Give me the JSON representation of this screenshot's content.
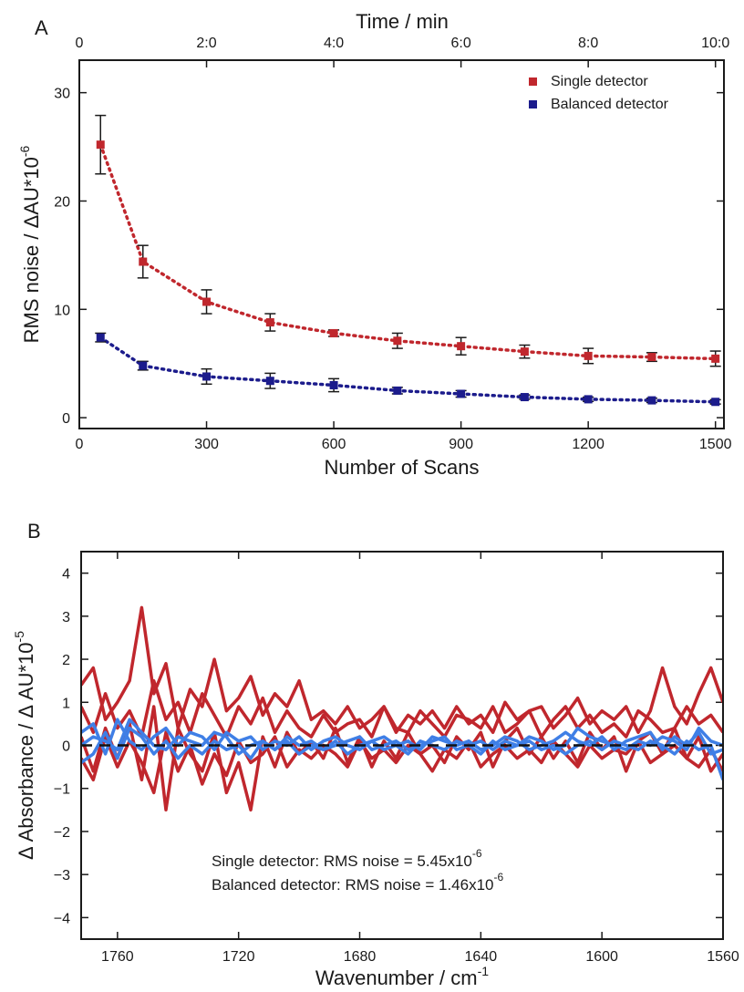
{
  "chart_data": [
    {
      "panel": "A",
      "type": "scatter",
      "xlabel": "Number of Scans",
      "ylabel": "RMS noise / ΔAU*10",
      "ylabel_exp": "-6",
      "x2label": "Time / min",
      "xlim": [
        0,
        1520
      ],
      "ylim": [
        -1,
        33
      ],
      "xticks": [
        0,
        300,
        600,
        900,
        1200,
        1500
      ],
      "yticks": [
        0,
        10,
        20,
        30
      ],
      "x2ticks": [
        "0",
        "2:0",
        "4:0",
        "6:0",
        "8:0",
        "10:0"
      ],
      "x2tick_values": [
        0,
        300,
        600,
        900,
        1200,
        1500
      ],
      "legend": "top-right",
      "series": [
        {
          "name": "Single detector",
          "color": "#c0272d",
          "x": [
            50,
            150,
            300,
            450,
            600,
            750,
            900,
            1050,
            1200,
            1350,
            1500
          ],
          "y": [
            25.2,
            14.4,
            10.7,
            8.8,
            7.8,
            7.1,
            6.6,
            6.1,
            5.7,
            5.6,
            5.45
          ],
          "err": [
            2.7,
            1.5,
            1.1,
            0.8,
            0.3,
            0.7,
            0.8,
            0.6,
            0.7,
            0.4,
            0.7
          ]
        },
        {
          "name": "Balanced detector",
          "color": "#1c1c8c",
          "x": [
            50,
            150,
            300,
            450,
            600,
            750,
            900,
            1050,
            1200,
            1350,
            1500
          ],
          "y": [
            7.4,
            4.8,
            3.8,
            3.4,
            3.0,
            2.5,
            2.2,
            1.9,
            1.7,
            1.6,
            1.46
          ],
          "err": [
            0.4,
            0.4,
            0.7,
            0.7,
            0.6,
            0.3,
            0.3,
            0.2,
            0.2,
            0.2,
            0.2
          ]
        }
      ]
    },
    {
      "panel": "B",
      "type": "line",
      "xlabel": "Wavenumber / cm",
      "xlabel_exp": "-1",
      "ylabel": "Δ Absorbance / Δ AU*10",
      "ylabel_exp": "-5",
      "xlim": [
        1772,
        1560
      ],
      "ylim": [
        -4.5,
        4.5
      ],
      "xticks": [
        1760,
        1720,
        1680,
        1640,
        1600,
        1560
      ],
      "yticks": [
        -4,
        -3,
        -2,
        -1,
        0,
        1,
        2,
        3,
        4
      ],
      "zero_line": true,
      "annotations": [
        {
          "text": "Single detector: RMS noise = 5.45x10",
          "exp": "-6",
          "color": "#c0272d"
        },
        {
          "text": "Balanced detector: RMS noise = 1.46x10",
          "exp": "-6",
          "color": "#3f7fe6"
        }
      ],
      "series": [
        {
          "group": "single",
          "color": "#c0272d",
          "x": [
            1772,
            1768,
            1764,
            1760,
            1756,
            1752,
            1748,
            1744,
            1740,
            1736,
            1732,
            1728,
            1724,
            1720,
            1716,
            1712,
            1708,
            1704,
            1700,
            1696,
            1692,
            1688,
            1684,
            1680,
            1676,
            1672,
            1668,
            1664,
            1660,
            1656,
            1652,
            1648,
            1644,
            1640,
            1636,
            1632,
            1628,
            1624,
            1620,
            1616,
            1612,
            1608,
            1604,
            1600,
            1596,
            1592,
            1588,
            1584,
            1580,
            1576,
            1572,
            1568,
            1564,
            1560
          ],
          "y": [
            1.4,
            1.8,
            0.6,
            1.0,
            1.5,
            3.2,
            1.2,
            1.9,
            0.4,
            1.3,
            0.9,
            2.0,
            0.8,
            1.1,
            1.6,
            0.7,
            1.2,
            0.9,
            1.5,
            0.6,
            0.8,
            0.5,
            0.9,
            0.4,
            0.6,
            0.9,
            0.3,
            0.7,
            0.5,
            0.8,
            0.4,
            0.9,
            0.5,
            0.7,
            0.3,
            1.0,
            0.6,
            0.8,
            0.9,
            0.4,
            0.7,
            1.1,
            0.5,
            0.8,
            0.6,
            0.9,
            0.3,
            0.8,
            1.8,
            0.9,
            0.5,
            1.2,
            1.8,
            1.0
          ]
        },
        {
          "group": "single",
          "color": "#c0272d",
          "x": [
            1772,
            1768,
            1764,
            1760,
            1756,
            1752,
            1748,
            1744,
            1740,
            1736,
            1732,
            1728,
            1724,
            1720,
            1716,
            1712,
            1708,
            1704,
            1700,
            1696,
            1692,
            1688,
            1684,
            1680,
            1676,
            1672,
            1668,
            1664,
            1660,
            1656,
            1652,
            1648,
            1644,
            1640,
            1636,
            1632,
            1628,
            1624,
            1620,
            1616,
            1612,
            1608,
            1604,
            1600,
            1596,
            1592,
            1588,
            1584,
            1580,
            1576,
            1572,
            1568,
            1564,
            1560
          ],
          "y": [
            0.2,
            -0.6,
            0.4,
            -0.3,
            0.5,
            -0.8,
            0.9,
            -1.5,
            0.4,
            -0.2,
            -0.6,
            0.3,
            -1.1,
            -0.4,
            -1.5,
            0.2,
            -0.5,
            0.3,
            -0.2,
            0.1,
            -0.3,
            0.4,
            -0.4,
            0.2,
            -0.5,
            0.1,
            -0.3,
            0.3,
            -0.2,
            0.0,
            -0.4,
            0.2,
            -0.1,
            0.3,
            -0.5,
            0.1,
            0.4,
            -0.2,
            0.2,
            -0.3,
            0.1,
            -0.4,
            0.3,
            -0.1,
            0.2,
            -0.6,
            0.1,
            0.3,
            -0.2,
            0.4,
            -0.3,
            0.2,
            -0.6,
            -0.2
          ]
        },
        {
          "group": "single",
          "color": "#c0272d",
          "x": [
            1772,
            1768,
            1764,
            1760,
            1756,
            1752,
            1748,
            1744,
            1740,
            1736,
            1732,
            1728,
            1724,
            1720,
            1716,
            1712,
            1708,
            1704,
            1700,
            1696,
            1692,
            1688,
            1684,
            1680,
            1676,
            1672,
            1668,
            1664,
            1660,
            1656,
            1652,
            1648,
            1644,
            1640,
            1636,
            1632,
            1628,
            1624,
            1620,
            1616,
            1612,
            1608,
            1604,
            1600,
            1596,
            1592,
            1588,
            1584,
            1580,
            1576,
            1572,
            1568,
            1564,
            1560
          ],
          "y": [
            0.9,
            0.3,
            1.2,
            0.4,
            0.8,
            0.2,
            1.5,
            0.6,
            1.0,
            0.3,
            1.2,
            0.7,
            0.2,
            0.9,
            0.5,
            1.1,
            0.3,
            0.8,
            0.4,
            0.2,
            0.7,
            0.3,
            0.5,
            0.6,
            0.2,
            0.9,
            0.4,
            0.3,
            0.8,
            0.5,
            0.2,
            0.7,
            0.6,
            0.4,
            0.9,
            0.3,
            0.5,
            0.8,
            0.2,
            0.6,
            0.9,
            0.4,
            0.7,
            0.3,
            0.5,
            0.2,
            0.8,
            0.6,
            0.3,
            0.4,
            0.9,
            0.5,
            0.7,
            0.3
          ]
        },
        {
          "group": "single",
          "color": "#c0272d",
          "x": [
            1772,
            1768,
            1764,
            1760,
            1756,
            1752,
            1748,
            1744,
            1740,
            1736,
            1732,
            1728,
            1724,
            1720,
            1716,
            1712,
            1708,
            1704,
            1700,
            1696,
            1692,
            1688,
            1684,
            1680,
            1676,
            1672,
            1668,
            1664,
            1660,
            1656,
            1652,
            1648,
            1644,
            1640,
            1636,
            1632,
            1628,
            1624,
            1620,
            1616,
            1612,
            1608,
            1604,
            1600,
            1596,
            1592,
            1588,
            1584,
            1580,
            1576,
            1572,
            1568,
            1564,
            1560
          ],
          "y": [
            -0.3,
            -0.8,
            0.2,
            -0.5,
            0.1,
            -0.4,
            -1.1,
            0.3,
            -0.6,
            0.0,
            -0.9,
            -0.2,
            -0.7,
            0.1,
            -0.4,
            -0.2,
            0.2,
            -0.5,
            -0.1,
            -0.3,
            0.0,
            -0.2,
            -0.5,
            0.1,
            -0.3,
            -0.1,
            -0.4,
            0.0,
            -0.2,
            -0.6,
            -0.1,
            -0.3,
            0.1,
            -0.5,
            -0.2,
            0.0,
            -0.3,
            -0.1,
            -0.4,
            0.1,
            -0.2,
            -0.5,
            0.0,
            -0.3,
            -0.1,
            -0.2,
            0.1,
            -0.4,
            -0.2,
            0.0,
            -0.3,
            -0.5,
            -0.1,
            -0.6
          ]
        },
        {
          "group": "balanced",
          "color": "#3f7fe6",
          "x": [
            1772,
            1768,
            1764,
            1760,
            1756,
            1752,
            1748,
            1744,
            1740,
            1736,
            1732,
            1728,
            1724,
            1720,
            1716,
            1712,
            1708,
            1704,
            1700,
            1696,
            1692,
            1688,
            1684,
            1680,
            1676,
            1672,
            1668,
            1664,
            1660,
            1656,
            1652,
            1648,
            1644,
            1640,
            1636,
            1632,
            1628,
            1624,
            1620,
            1616,
            1612,
            1608,
            1604,
            1600,
            1596,
            1592,
            1588,
            1584,
            1580,
            1576,
            1572,
            1568,
            1564,
            1560
          ],
          "y": [
            0.3,
            0.5,
            -0.2,
            0.6,
            0.1,
            -0.1,
            0.2,
            0.4,
            0.0,
            0.3,
            0.2,
            -0.1,
            0.3,
            0.1,
            0.2,
            -0.1,
            0.1,
            0.0,
            0.2,
            -0.1,
            0.1,
            0.2,
            0.0,
            -0.1,
            0.1,
            0.2,
            0.0,
            0.1,
            -0.1,
            0.2,
            0.1,
            0.0,
            0.1,
            -0.1,
            0.0,
            0.2,
            0.1,
            -0.1,
            0.0,
            0.1,
            0.3,
            0.1,
            0.0,
            0.2,
            -0.1,
            0.1,
            0.2,
            0.3,
            -0.1,
            0.2,
            0.0,
            0.3,
            -0.2,
            -0.1
          ]
        },
        {
          "group": "balanced",
          "color": "#3f7fe6",
          "x": [
            1772,
            1768,
            1764,
            1760,
            1756,
            1752,
            1748,
            1744,
            1740,
            1736,
            1732,
            1728,
            1724,
            1720,
            1716,
            1712,
            1708,
            1704,
            1700,
            1696,
            1692,
            1688,
            1684,
            1680,
            1676,
            1672,
            1668,
            1664,
            1660,
            1656,
            1652,
            1648,
            1644,
            1640,
            1636,
            1632,
            1628,
            1624,
            1620,
            1616,
            1612,
            1608,
            1604,
            1600,
            1596,
            1592,
            1588,
            1584,
            1580,
            1576,
            1572,
            1568,
            1564,
            1560
          ],
          "y": [
            -0.4,
            -0.2,
            0.3,
            -0.3,
            0.4,
            0.2,
            -0.2,
            0.1,
            -0.3,
            0.0,
            -0.2,
            0.1,
            -0.1,
            0.0,
            -0.3,
            0.1,
            -0.1,
            0.1,
            -0.2,
            0.0,
            -0.1,
            0.1,
            -0.2,
            0.0,
            0.1,
            -0.1,
            0.0,
            -0.2,
            0.1,
            0.0,
            -0.1,
            0.1,
            0.0,
            -0.2,
            0.1,
            -0.1,
            0.0,
            0.1,
            -0.1,
            0.0,
            -0.2,
            0.0,
            0.1,
            -0.1,
            0.1,
            0.0,
            -0.1,
            0.1,
            0.0,
            -0.2,
            0.1,
            -0.1,
            0.0,
            -0.8
          ]
        },
        {
          "group": "balanced",
          "color": "#3f7fe6",
          "x": [
            1772,
            1768,
            1764,
            1760,
            1756,
            1752,
            1748,
            1744,
            1740,
            1736,
            1732,
            1728,
            1724,
            1720,
            1716,
            1712,
            1708,
            1704,
            1700,
            1696,
            1692,
            1688,
            1684,
            1680,
            1676,
            1672,
            1668,
            1664,
            1660,
            1656,
            1652,
            1648,
            1644,
            1640,
            1636,
            1632,
            1628,
            1624,
            1620,
            1616,
            1612,
            1608,
            1604,
            1600,
            1596,
            1592,
            1588,
            1584,
            1580,
            1576,
            1572,
            1568,
            1564,
            1560
          ],
          "y": [
            0.0,
            0.2,
            0.1,
            -0.1,
            0.6,
            0.3,
            0.0,
            -0.1,
            0.2,
            0.1,
            0.0,
            0.3,
            0.2,
            -0.2,
            0.0,
            0.1,
            -0.1,
            0.2,
            0.0,
            0.1,
            -0.1,
            0.0,
            0.1,
            0.2,
            -0.1,
            0.0,
            0.1,
            -0.1,
            0.0,
            0.1,
            0.2,
            -0.1,
            0.0,
            0.1,
            -0.1,
            0.1,
            0.0,
            0.2,
            0.1,
            -0.1,
            0.0,
            0.4,
            0.2,
            0.1,
            0.0,
            -0.1,
            0.1,
            0.0,
            0.2,
            0.1,
            -0.1,
            0.4,
            0.1,
            0.0
          ]
        }
      ]
    }
  ],
  "figure": {
    "panel_labels": [
      "A",
      "B"
    ]
  }
}
